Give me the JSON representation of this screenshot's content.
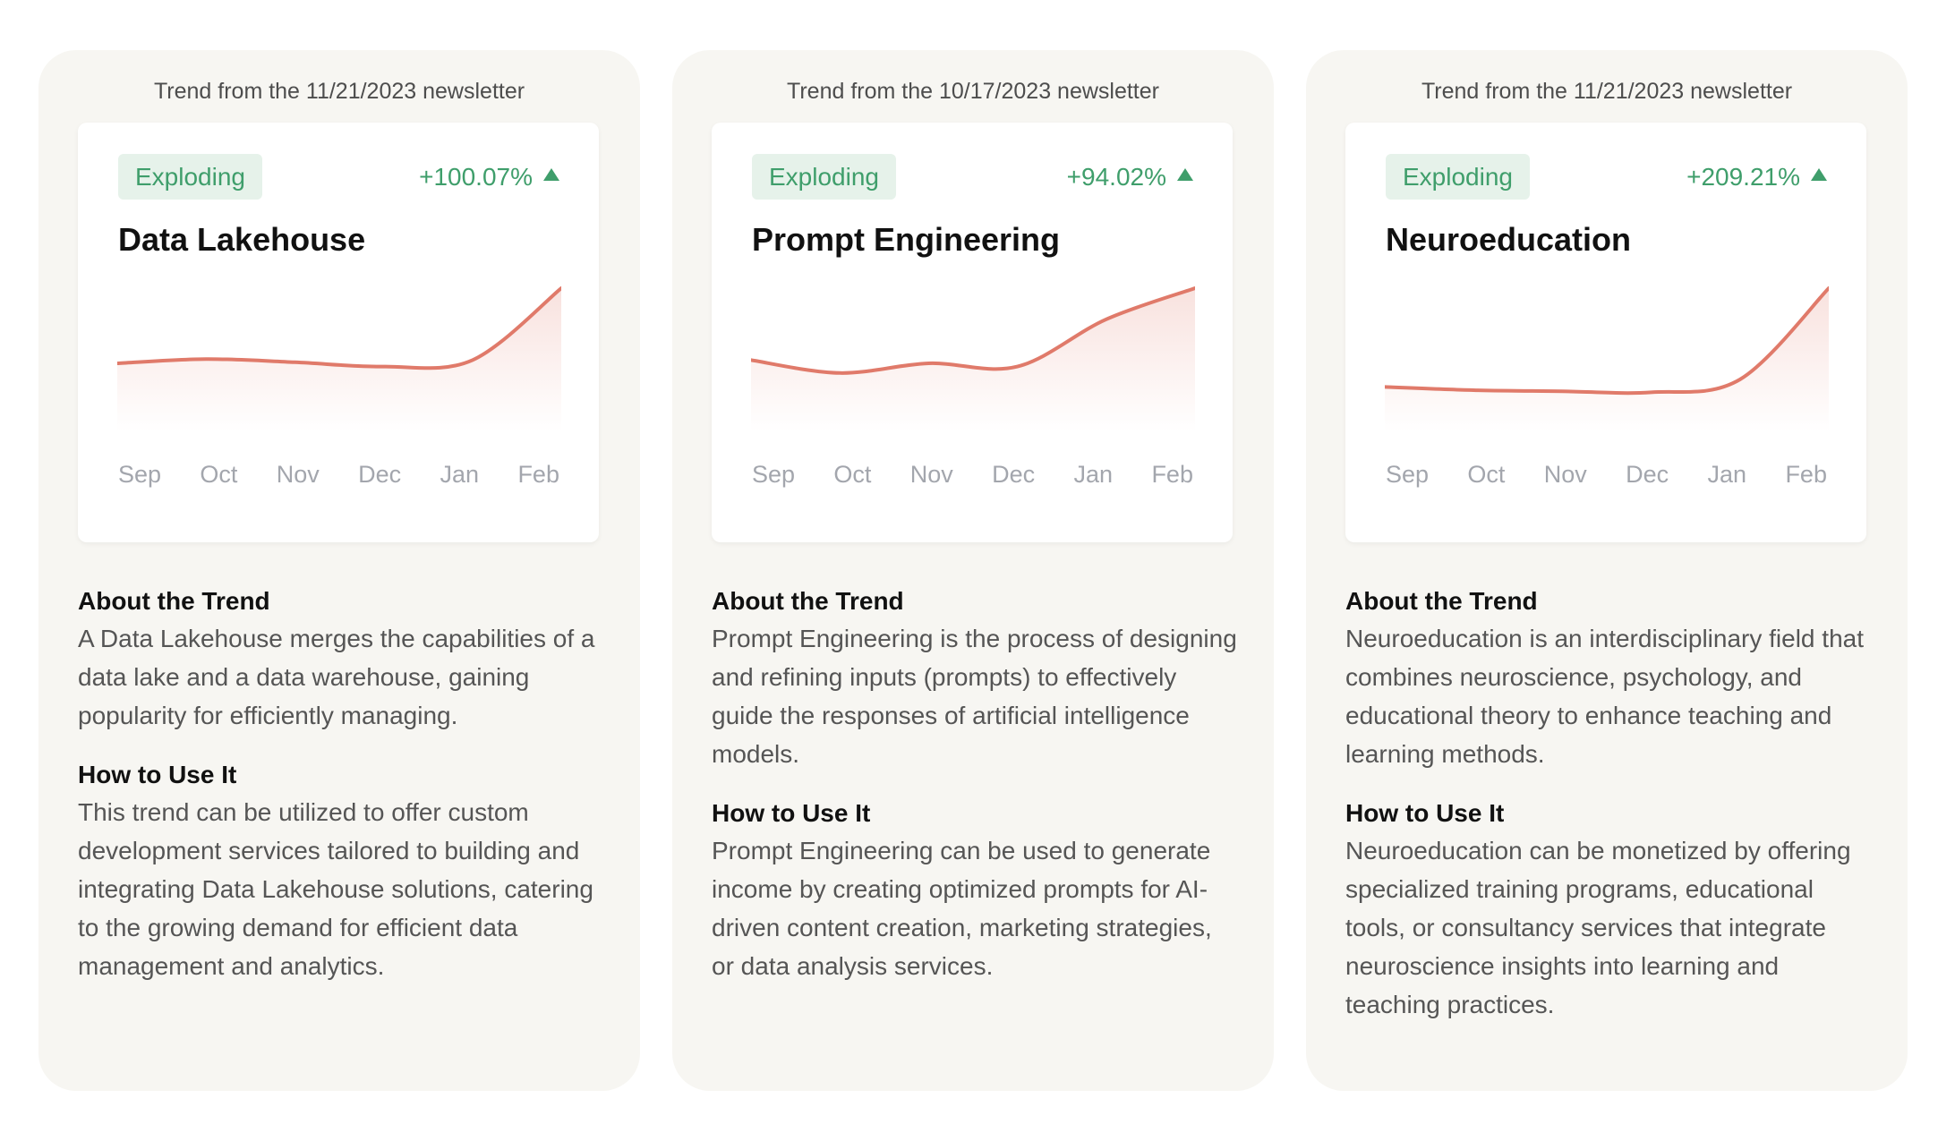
{
  "cards": [
    {
      "newsletter": "Trend from the 11/21/2023 newsletter",
      "badge": "Exploding",
      "growth": "+100.07%",
      "name": "Data Lakehouse",
      "about_heading": "About the Trend",
      "about_text": "A Data Lakehouse merges the capabilities of a data lake and a data warehouse, gaining popularity for efficiently managing.",
      "use_heading": "How to Use It",
      "use_text": "This trend can be utilized to offer custom development services tailored to building and integrating Data Lakehouse solutions, catering to the growing demand for efficient data management and analytics.",
      "chart_data": {
        "type": "area",
        "categories": [
          "Sep",
          "Oct",
          "Nov",
          "Dec",
          "Jan",
          "Feb"
        ],
        "values": [
          30,
          34,
          31,
          27,
          33,
          100
        ],
        "ylim": [
          0,
          100
        ],
        "color": "#e07a6a"
      }
    },
    {
      "newsletter": "Trend from the 10/17/2023 newsletter",
      "badge": "Exploding",
      "growth": "+94.02%",
      "name": "Prompt Engineering",
      "about_heading": "About the Trend",
      "about_text": "Prompt Engineering is the process of designing and refining inputs (prompts) to effectively guide the responses of artificial intelligence models.",
      "use_heading": "How to Use It",
      "use_text": "Prompt Engineering can be used to generate income by creating optimized prompts for AI-driven content creation, marketing strategies, or data analysis services.",
      "chart_data": {
        "type": "area",
        "categories": [
          "Sep",
          "Oct",
          "Nov",
          "Dec",
          "Jan",
          "Feb"
        ],
        "values": [
          33,
          21,
          30,
          27,
          71,
          100
        ],
        "ylim": [
          0,
          100
        ],
        "color": "#e07a6a"
      }
    },
    {
      "newsletter": "Trend from the 11/21/2023 newsletter",
      "badge": "Exploding",
      "growth": "+209.21%",
      "name": "Neuroeducation",
      "about_heading": "About the Trend",
      "about_text": "Neuroeducation is an interdisciplinary field that combines neuroscience, psychology, and educational theory to enhance teaching and learning methods.",
      "use_heading": "How to Use It",
      "use_text": "Neuroeducation can be monetized by offering specialized training programs, educational tools, or consultancy services that integrate neuroscience insights into learning and teaching practices.",
      "chart_data": {
        "type": "area",
        "categories": [
          "Sep",
          "Oct",
          "Nov",
          "Dec",
          "Jan",
          "Feb"
        ],
        "values": [
          8,
          5,
          4,
          3,
          15,
          100
        ],
        "ylim": [
          0,
          100
        ],
        "color": "#e07a6a"
      }
    }
  ]
}
